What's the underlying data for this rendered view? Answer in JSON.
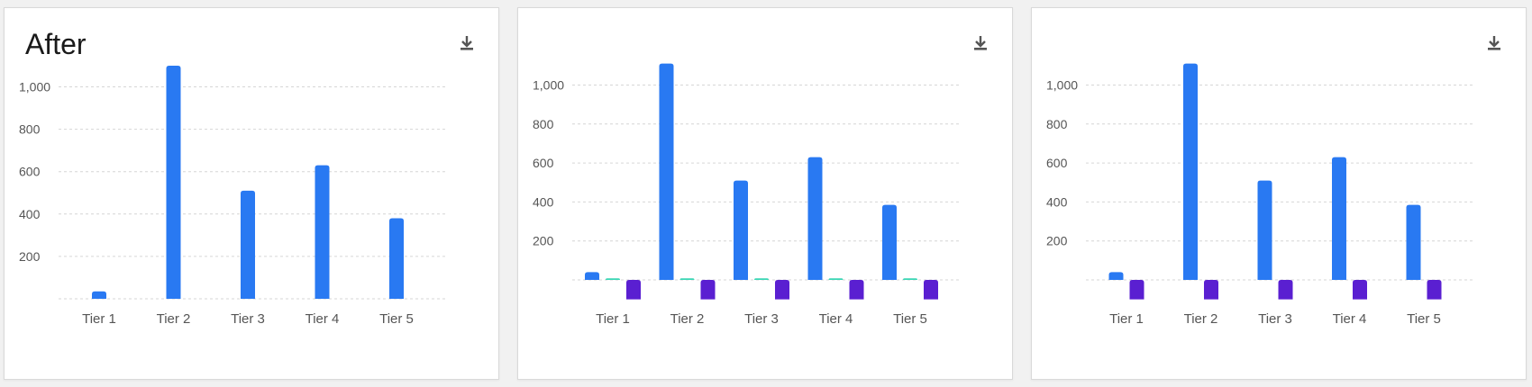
{
  "colors": {
    "series_a": "#2979f2",
    "series_b": "#38d6b4",
    "series_c": "#5a1fd1",
    "icon": "#555555"
  },
  "icons": {
    "download": "download-icon"
  },
  "chart_data": [
    {
      "type": "bar",
      "title": "After",
      "categories": [
        "Tier 1",
        "Tier 2",
        "Tier 3",
        "Tier 4",
        "Tier 5"
      ],
      "yticks": [
        "200",
        "400",
        "600",
        "800",
        "1,000"
      ],
      "ylim": [
        0,
        1100
      ],
      "grid": true,
      "series": [
        {
          "color": "#2979f2",
          "values": [
            35,
            1100,
            510,
            630,
            380
          ]
        }
      ]
    },
    {
      "type": "bar",
      "title": "",
      "categories": [
        "Tier 1",
        "Tier 2",
        "Tier 3",
        "Tier 4",
        "Tier 5"
      ],
      "yticks": [
        "200",
        "400",
        "600",
        "800",
        "1,000"
      ],
      "ylim": [
        0,
        1100
      ],
      "grid": true,
      "series": [
        {
          "color": "#2979f2",
          "values": [
            40,
            1110,
            510,
            630,
            385
          ]
        },
        {
          "color": "#38d6b4",
          "values": [
            8,
            8,
            8,
            8,
            8
          ]
        },
        {
          "color": "#5a1fd1",
          "values": [
            -100,
            -100,
            -100,
            -100,
            -100
          ]
        }
      ]
    },
    {
      "type": "bar",
      "title": "",
      "categories": [
        "Tier 1",
        "Tier 2",
        "Tier 3",
        "Tier 4",
        "Tier 5"
      ],
      "yticks": [
        "200",
        "400",
        "600",
        "800",
        "1,000"
      ],
      "ylim": [
        0,
        1100
      ],
      "grid": true,
      "series": [
        {
          "color": "#2979f2",
          "values": [
            40,
            1110,
            510,
            630,
            385
          ]
        },
        {
          "color": "#5a1fd1",
          "values": [
            -100,
            -100,
            -100,
            -100,
            -100
          ]
        }
      ]
    }
  ]
}
